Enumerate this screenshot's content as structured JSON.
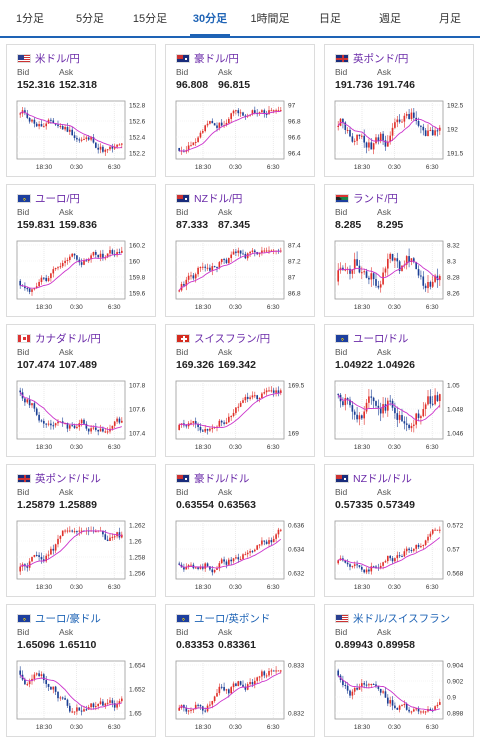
{
  "tabs": [
    {
      "label": "1分足",
      "active": false
    },
    {
      "label": "5分足",
      "active": false
    },
    {
      "label": "15分足",
      "active": false
    },
    {
      "label": "30分足",
      "active": true
    },
    {
      "label": "1時間足",
      "active": false
    },
    {
      "label": "日足",
      "active": false
    },
    {
      "label": "週足",
      "active": false
    },
    {
      "label": "月足",
      "active": false
    }
  ],
  "bid_label": "Bid",
  "ask_label": "Ask",
  "x_ticks": [
    "18:30",
    "0:30",
    "6:30"
  ],
  "pairs": [
    {
      "name": "米ドル/円",
      "flag": "us",
      "bid": "152.316",
      "ask": "152.318",
      "yticks": [
        "152.8",
        "152.6",
        "152.4",
        "152.2"
      ],
      "trend": "down"
    },
    {
      "name": "豪ドル/円",
      "flag": "au",
      "bid": "96.808",
      "ask": "96.815",
      "yticks": [
        "97",
        "96.8",
        "96.6",
        "96.4"
      ],
      "trend": "up"
    },
    {
      "name": "英ポンド/円",
      "flag": "uk",
      "bid": "191.736",
      "ask": "191.746",
      "yticks": [
        "192.5",
        "192",
        "191.5"
      ],
      "trend": "flat"
    },
    {
      "name": "ユーロ/円",
      "flag": "eu",
      "bid": "159.831",
      "ask": "159.836",
      "yticks": [
        "160.2",
        "160",
        "159.8",
        "159.6"
      ],
      "trend": "flat"
    },
    {
      "name": "NZドル/円",
      "flag": "nz",
      "bid": "87.333",
      "ask": "87.345",
      "yticks": [
        "87.4",
        "87.2",
        "87",
        "86.8"
      ],
      "trend": "up"
    },
    {
      "name": "ランド/円",
      "flag": "za",
      "bid": "8.285",
      "ask": "8.295",
      "yticks": [
        "8.32",
        "8.3",
        "8.28",
        "8.26"
      ],
      "trend": "upflat"
    },
    {
      "name": "カナダドル/円",
      "flag": "ca",
      "bid": "107.474",
      "ask": "107.489",
      "yticks": [
        "107.8",
        "107.6",
        "107.4"
      ],
      "trend": "down"
    },
    {
      "name": "スイスフラン/円",
      "flag": "ch",
      "bid": "169.326",
      "ask": "169.342",
      "yticks": [
        "169.5",
        "169"
      ],
      "trend": "up"
    },
    {
      "name": "ユーロ/ドル",
      "flag": "eu_us",
      "bid": "1.04922",
      "ask": "1.04926",
      "yticks": [
        "1.05",
        "1.048",
        "1.046"
      ],
      "trend": "up"
    },
    {
      "name": "英ポンド/ドル",
      "flag": "uk_us",
      "bid": "1.25879",
      "ask": "1.25889",
      "yticks": [
        "1.262",
        "1.26",
        "1.258",
        "1.256"
      ],
      "trend": "upflat"
    },
    {
      "name": "豪ドル/ドル",
      "flag": "au_us",
      "bid": "0.63554",
      "ask": "0.63563",
      "yticks": [
        "0.636",
        "0.634",
        "0.632"
      ],
      "trend": "up"
    },
    {
      "name": "NZドル/ドル",
      "flag": "nz_us",
      "bid": "0.57335",
      "ask": "0.57349",
      "yticks": [
        "0.572",
        "0.57",
        "0.568"
      ],
      "trend": "up"
    },
    {
      "name": "ユーロ/豪ドル",
      "flag": "eu_au",
      "bid": "1.65096",
      "ask": "1.65110",
      "yticks": [
        "1.654",
        "1.652",
        "1.65"
      ],
      "trend": "down",
      "blue": true
    },
    {
      "name": "ユーロ/英ポンド",
      "flag": "eu_uk",
      "bid": "0.83353",
      "ask": "0.83361",
      "yticks": [
        "0.833",
        "0.832"
      ],
      "trend": "up",
      "blue": true
    },
    {
      "name": "米ドル/スイスフラン",
      "flag": "us_ch",
      "bid": "0.89943",
      "ask": "0.89958",
      "yticks": [
        "0.904",
        "0.902",
        "0.9",
        "0.898"
      ],
      "trend": "down",
      "blue": true
    }
  ],
  "colors": {
    "accent": "#1e63b5",
    "pair_text": "#6a2aa8",
    "up_candle": "#e0302a",
    "down_candle": "#1b3f95",
    "ma_line": "#cc33cc"
  }
}
